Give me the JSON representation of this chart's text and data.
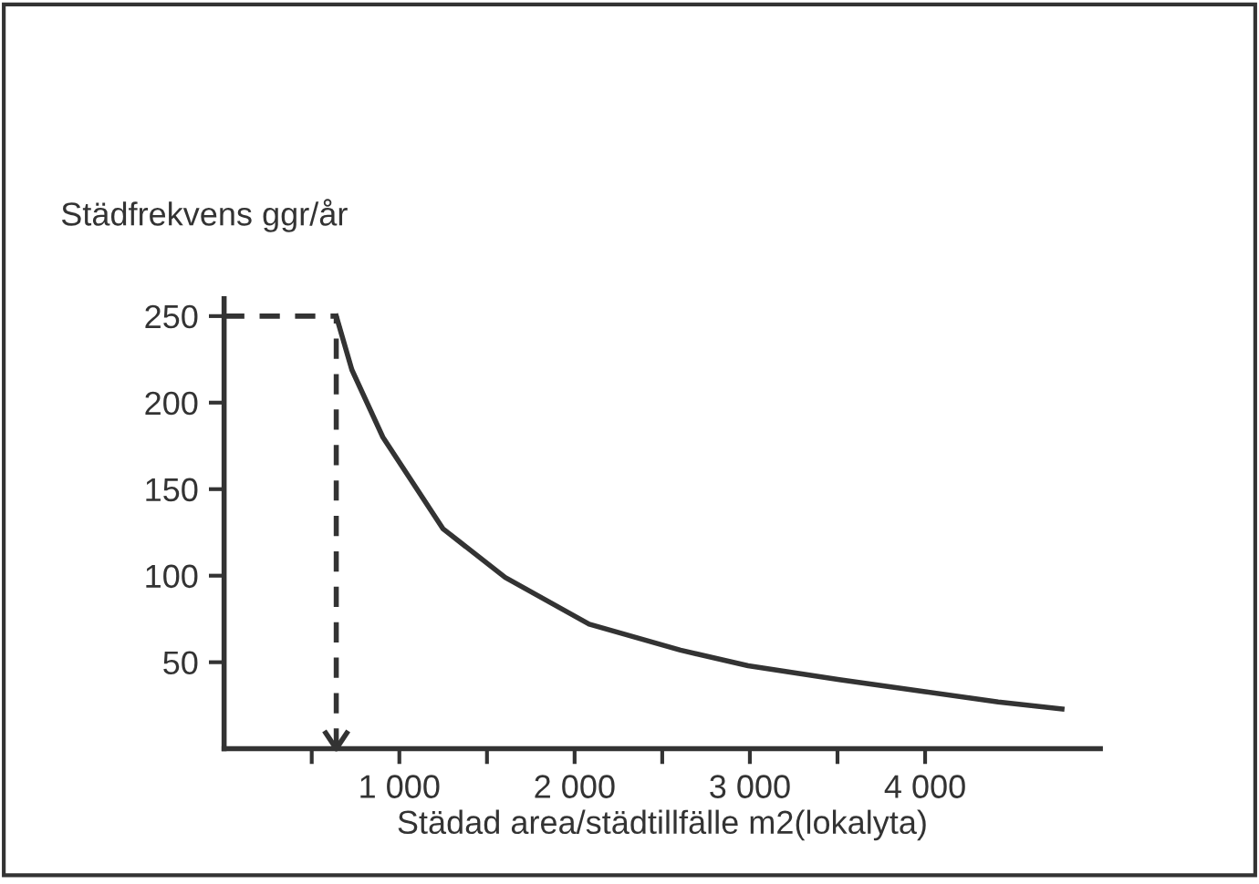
{
  "chart_data": {
    "type": "line",
    "ylabel": "Städfrekvens ggr/år",
    "xlabel": "Städad area/städtillfälle m2(lokalyta)",
    "x": [
      640,
      729,
      906,
      1250,
      1604,
      2083,
      2604,
      2990,
      3510,
      4000,
      4417,
      4781
    ],
    "series": [
      {
        "color": "#333333",
        "values": [
          250,
          219,
          180,
          127,
          99,
          72,
          57,
          48,
          40,
          33,
          27,
          23
        ]
      }
    ],
    "xlim": [
      0,
      5000
    ],
    "ylim": [
      0,
      260
    ],
    "xticks": [
      {
        "value": 500,
        "label": null
      },
      {
        "value": 1000,
        "label": "1 000"
      },
      {
        "value": 1500,
        "label": null
      },
      {
        "value": 2000,
        "label": "2 000"
      },
      {
        "value": 2500,
        "label": null
      },
      {
        "value": 3000,
        "label": "3 000"
      },
      {
        "value": 3500,
        "label": null
      },
      {
        "value": 4000,
        "label": "4 000"
      }
    ],
    "yticks": [
      50,
      100,
      150,
      200,
      250
    ],
    "ref_lines": [
      {
        "axis": "y",
        "value": 250,
        "line_style": "dashed",
        "color": "#333333"
      },
      {
        "axis": "x",
        "value": 640,
        "line_style": "dashed",
        "color": "#333333"
      }
    ],
    "grid": false,
    "marker": "none",
    "line_style": "solid"
  }
}
